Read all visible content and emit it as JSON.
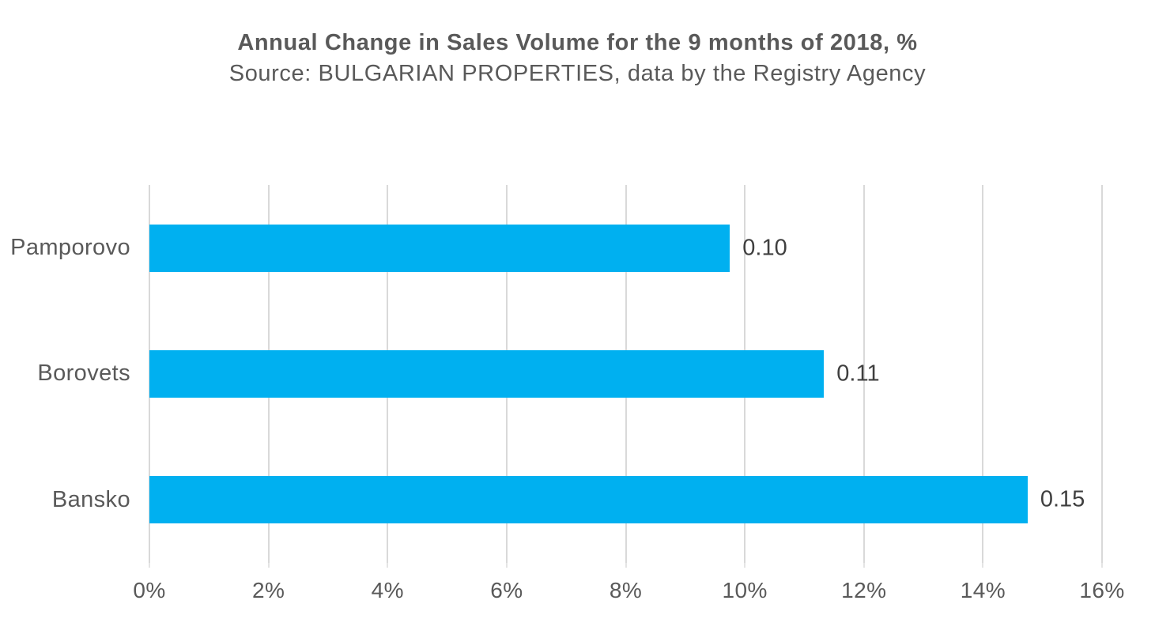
{
  "chart_data": {
    "type": "bar",
    "orientation": "horizontal",
    "title": "Annual Change in Sales Volume for the 9 months of 2018, %",
    "subtitle": "Source: BULGARIAN PROPERTIES, data by the Registry Agency",
    "categories": [
      "Pamporovo",
      "Borovets",
      "Bansko"
    ],
    "values": [
      0.0975,
      0.1133,
      0.1475
    ],
    "data_labels": [
      "0.10",
      "0.11",
      "0.15"
    ],
    "x_axis": {
      "tick_labels": [
        "0%",
        "2%",
        "4%",
        "6%",
        "8%",
        "10%",
        "12%",
        "14%",
        "16%"
      ],
      "min": 0,
      "max": 0.16,
      "step": 0.02,
      "format": "percent"
    },
    "grid": true,
    "legend": false,
    "layout": {
      "bar_order_top_to_bottom": [
        "Pamporovo",
        "Borovets",
        "Bansko"
      ],
      "data_label_position": "outside-end"
    },
    "colors": {
      "bar": "#00B0F0",
      "gridline": "#D9D9D9",
      "title_text": "#595959",
      "subtitle_text": "#595959",
      "category_text": "#595959",
      "axis_text": "#595959",
      "data_label_text": "#3F3F3F",
      "background": "#FFFFFF"
    }
  }
}
